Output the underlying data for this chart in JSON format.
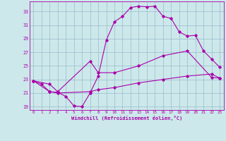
{
  "xlabel": "Windchill (Refroidissement éolien,°C)",
  "bg_color": "#cce8ea",
  "line_color": "#aa00aa",
  "grid_color": "#99bbcc",
  "xlim": [
    -0.5,
    23.5
  ],
  "ylim": [
    18.5,
    34.5
  ],
  "xticks": [
    0,
    1,
    2,
    3,
    4,
    5,
    6,
    7,
    8,
    9,
    10,
    11,
    12,
    13,
    14,
    15,
    16,
    17,
    18,
    19,
    20,
    21,
    22,
    23
  ],
  "yticks": [
    19,
    21,
    23,
    25,
    27,
    29,
    31,
    33
  ],
  "line1_x": [
    0,
    1,
    2,
    3,
    4,
    5,
    6,
    7,
    8,
    9,
    10,
    11,
    12,
    13,
    14,
    15,
    16,
    17,
    18,
    19,
    20,
    21,
    22,
    23
  ],
  "line1_y": [
    22.8,
    22.3,
    21.2,
    21.1,
    20.5,
    19.1,
    19.0,
    21.0,
    23.5,
    28.8,
    31.5,
    32.3,
    33.6,
    33.8,
    33.7,
    33.8,
    32.3,
    32.0,
    30.0,
    29.4,
    29.5,
    27.2,
    26.0,
    24.8
  ],
  "line2_x": [
    0,
    2,
    3,
    7,
    8,
    10,
    13,
    16,
    19,
    22,
    23
  ],
  "line2_y": [
    22.8,
    22.3,
    21.2,
    25.7,
    24.0,
    24.0,
    25.0,
    26.5,
    27.2,
    23.3,
    23.2
  ],
  "line3_x": [
    0,
    2,
    3,
    7,
    8,
    10,
    13,
    16,
    19,
    22,
    23
  ],
  "line3_y": [
    22.8,
    21.2,
    21.0,
    21.2,
    21.5,
    21.8,
    22.5,
    23.0,
    23.5,
    23.8,
    23.2
  ]
}
